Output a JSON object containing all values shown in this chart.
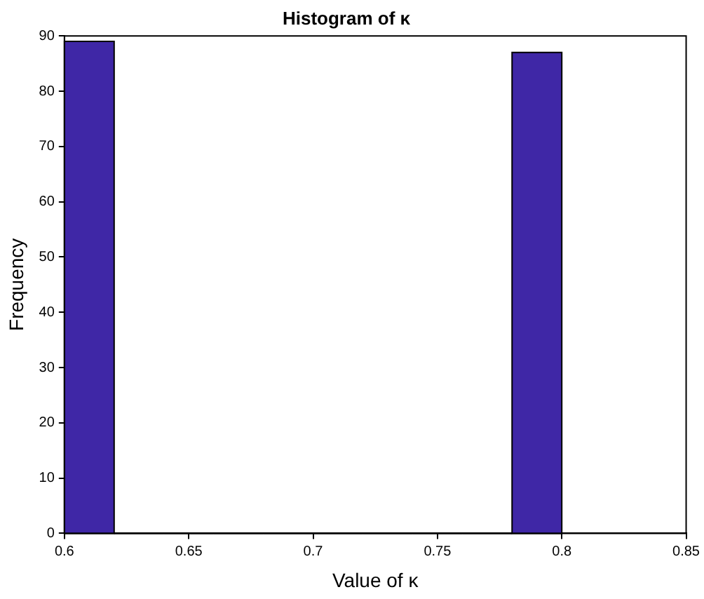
{
  "chart_data": {
    "type": "histogram",
    "title": "Histogram of κ",
    "xlabel": "Value of κ",
    "ylabel": "Frequency",
    "bins": [
      0.6,
      0.62,
      0.64,
      0.66,
      0.68,
      0.7,
      0.72,
      0.74,
      0.76,
      0.78,
      0.8
    ],
    "values": [
      89,
      0,
      0,
      0,
      0,
      0,
      0,
      0,
      0,
      87
    ],
    "color": "#3f27a6",
    "xlim": [
      0.6,
      0.85
    ],
    "xticks": [
      0.6,
      0.65,
      0.7,
      0.75,
      0.8,
      0.85
    ],
    "ylim": [
      0,
      90
    ],
    "yticks": [
      0,
      10,
      20,
      30,
      40,
      50,
      60,
      70,
      80,
      90
    ],
    "grid": false,
    "legend": false
  }
}
